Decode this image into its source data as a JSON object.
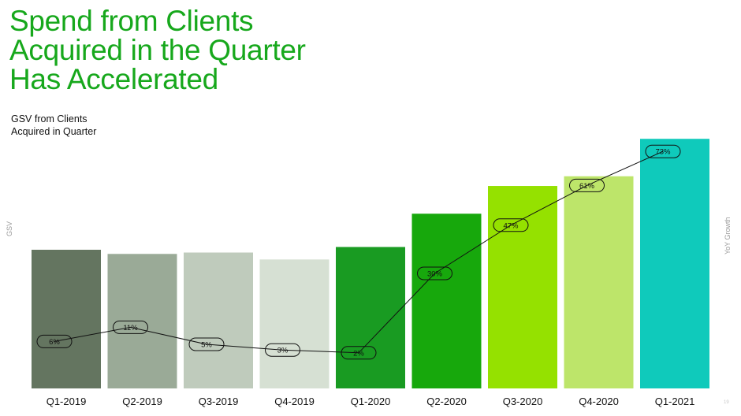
{
  "title_lines": [
    "Spend from Clients",
    "Acquired in the Quarter",
    "Has Accelerated"
  ],
  "subtitle_lines": [
    "GSV from Clients",
    "Acquired in Quarter"
  ],
  "accent_color": "#17a81c",
  "page_number": "19",
  "chart_data": {
    "type": "bar",
    "categories": [
      "Q1-2019",
      "Q2-2019",
      "Q3-2019",
      "Q4-2019",
      "Q1-2020",
      "Q2-2020",
      "Q3-2020",
      "Q4-2020",
      "Q1-2021"
    ],
    "ylabel": "GSV",
    "y2label": "YoY Growth",
    "bar_colors": [
      "#647560",
      "#9aaa97",
      "#bfcbbc",
      "#d6e0d3",
      "#199b22",
      "#17a80c",
      "#95e100",
      "#bde56a",
      "#0fcabb"
    ],
    "gsv_relative": [
      100,
      97,
      98,
      93,
      102,
      126,
      146,
      153,
      180
    ],
    "series": [
      {
        "type": "line",
        "values": [
          6,
          11,
          5,
          3,
          2,
          30,
          47,
          61,
          73
        ],
        "labels": [
          "6%",
          "11%",
          "5%",
          "3%",
          "2%",
          "30%",
          "47%",
          "61%",
          "73%"
        ]
      }
    ],
    "bar_axis_visible": false,
    "line_axis_visible": false,
    "grid": false,
    "legend": "none"
  }
}
